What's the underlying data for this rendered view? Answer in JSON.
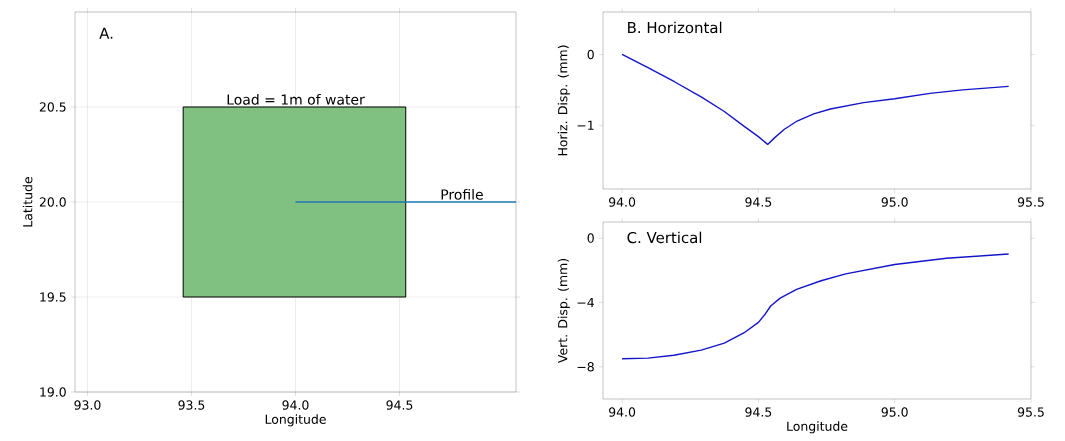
{
  "chart_data": [
    {
      "type": "line",
      "title": "A.",
      "xlabel": "Longitude",
      "ylabel": "Latitude",
      "xlim": [
        92.94,
        95.06
      ],
      "ylim": [
        19.0,
        21.0
      ],
      "xticks": [
        {
          "value": 93,
          "label": "93.0"
        },
        {
          "value": 93.5,
          "label": "93.5"
        },
        {
          "value": 94,
          "label": "94.0"
        },
        {
          "value": 94.5,
          "label": "94.5"
        }
      ],
      "yticks": [
        {
          "value": 19,
          "label": "19.0"
        },
        {
          "value": 19.5,
          "label": "19.5"
        },
        {
          "value": 20,
          "label": "20.0"
        },
        {
          "value": 20.5,
          "label": "20.5"
        }
      ],
      "grid": true,
      "series": [
        {
          "type": "area",
          "color": "#80c080",
          "x": [
            93.46,
            93.46,
            94.53,
            94.53
          ],
          "values": [
            19.5,
            20.5,
            20.5,
            19.5
          ]
        },
        {
          "type": "line",
          "color": "#1f77b4",
          "x": [
            94.0,
            95.06
          ],
          "values": [
            20.0,
            20.0
          ]
        }
      ],
      "annotations": [
        {
          "text": "Load = 1m of water",
          "x": 94.0,
          "y": 20.5
        },
        {
          "text": "Profile",
          "x": 94.8,
          "y": 20.0
        }
      ]
    },
    {
      "type": "line",
      "title": "B. Horizontal",
      "ylabel": "Horiz. Disp. (mm)",
      "xlim": [
        93.93,
        95.5
      ],
      "ylim": [
        -1.9,
        0.6
      ],
      "xticks": [
        {
          "value": 94,
          "label": "94.0"
        },
        {
          "value": 94.5,
          "label": "94.5"
        },
        {
          "value": 95,
          "label": "95.0"
        },
        {
          "value": 95.5,
          "label": "95.5"
        }
      ],
      "yticks": [
        {
          "value": -1,
          "label": "−1"
        },
        0
      ],
      "series": [
        {
          "color": "#1414c8",
          "x": [
            94.0,
            94.095,
            94.192,
            94.29,
            94.375,
            94.448,
            94.5,
            94.534,
            94.557,
            94.594,
            94.642,
            94.703,
            94.764,
            94.886,
            95.0,
            95.129,
            95.25,
            95.418
          ],
          "values": [
            0,
            -0.185,
            -0.385,
            -0.6,
            -0.805,
            -1.015,
            -1.16,
            -1.27,
            -1.185,
            -1.06,
            -0.94,
            -0.84,
            -0.77,
            -0.68,
            -0.625,
            -0.55,
            -0.5,
            -0.45
          ]
        }
      ]
    },
    {
      "type": "line",
      "title": "C. Vertical",
      "xlabel": "Longitude",
      "ylabel": "Vert. Disp. (mm)",
      "xlim": [
        93.93,
        95.5
      ],
      "ylim": [
        -10,
        1
      ],
      "xticks": [
        {
          "value": 94,
          "label": "94.0"
        },
        {
          "value": 94.5,
          "label": "94.5"
        },
        {
          "value": 95,
          "label": "95.0"
        },
        {
          "value": 95.5,
          "label": "95.5"
        }
      ],
      "yticks": [
        {
          "value": -8,
          "label": "−8"
        },
        {
          "value": -4,
          "label": "−4"
        },
        0
      ],
      "series": [
        {
          "color": "#1414c8",
          "x": [
            94.0,
            94.095,
            94.19,
            94.29,
            94.375,
            94.448,
            94.5,
            94.526,
            94.545,
            94.58,
            94.64,
            94.73,
            94.82,
            95.0,
            95.19,
            95.418
          ],
          "values": [
            -7.5,
            -7.46,
            -7.28,
            -6.96,
            -6.53,
            -5.88,
            -5.24,
            -4.7,
            -4.22,
            -3.73,
            -3.19,
            -2.65,
            -2.22,
            -1.64,
            -1.25,
            -0.99
          ]
        }
      ]
    }
  ]
}
